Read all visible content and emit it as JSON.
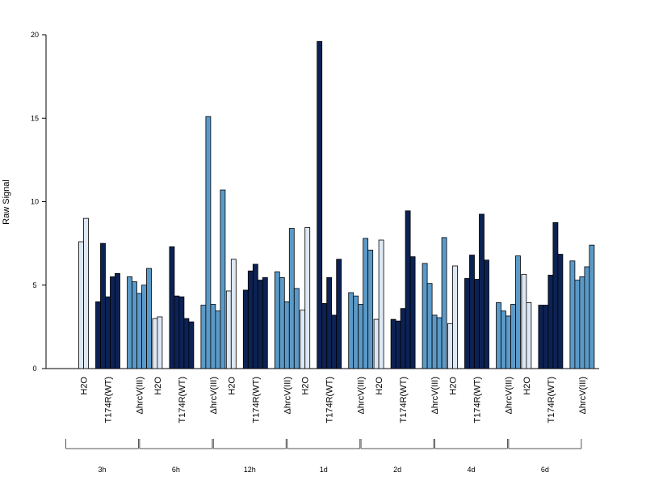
{
  "chart_data": {
    "type": "bar",
    "ylabel": "Raw Signal",
    "ylim": [
      0,
      20
    ],
    "yticks": [
      "0",
      "5",
      "10",
      "15",
      "20"
    ],
    "treatment_labels": [
      "H2O",
      "T174R(WT)",
      "ΔhrcV(III)"
    ],
    "colors": {
      "H2O": "#dde8f4",
      "T174R(WT)": "#0c2254",
      "ΔhrcV(III)": "#5b9ac8",
      "edge": "#000000"
    },
    "groups": [
      {
        "label": "3h",
        "H2O": [
          7.6,
          9.0
        ],
        "T174R(WT)": [
          4.0,
          7.5,
          4.3,
          5.5,
          5.7
        ],
        "ΔhrcV(III)": [
          5.5,
          5.2,
          4.5,
          5.0,
          6.0
        ]
      },
      {
        "label": "6h",
        "H2O": [
          3.0,
          3.1
        ],
        "T174R(WT)": [
          7.3,
          4.35,
          4.3,
          3.0,
          2.8
        ],
        "ΔhrcV(III)": [
          3.8,
          15.1,
          3.85,
          3.45,
          10.7
        ]
      },
      {
        "label": "12h",
        "H2O": [
          4.65,
          6.55
        ],
        "T174R(WT)": [
          4.7,
          5.85,
          6.25,
          5.3,
          5.45
        ],
        "ΔhrcV(III)": [
          5.8,
          5.45,
          4.0,
          8.4,
          4.8
        ]
      },
      {
        "label": "1d",
        "H2O": [
          3.5,
          8.45
        ],
        "T174R(WT)": [
          19.6,
          3.9,
          5.45,
          3.2,
          6.55
        ],
        "ΔhrcV(III)": [
          4.55,
          4.35,
          3.85,
          7.8,
          7.1
        ]
      },
      {
        "label": "2d",
        "H2O": [
          2.95,
          7.7
        ],
        "T174R(WT)": [
          2.95,
          2.85,
          3.6,
          9.45,
          6.7
        ],
        "ΔhrcV(III)": [
          6.3,
          5.1,
          3.2,
          3.05,
          7.85
        ]
      },
      {
        "label": "4d",
        "H2O": [
          2.7,
          6.15
        ],
        "T174R(WT)": [
          5.4,
          6.8,
          5.35,
          9.25,
          6.5
        ],
        "ΔhrcV(III)": [
          3.95,
          3.45,
          3.15,
          3.85,
          6.75
        ]
      },
      {
        "label": "6d",
        "H2O": [
          5.65,
          3.95
        ],
        "T174R(WT)": [
          3.8,
          3.8,
          5.6,
          8.75,
          6.85
        ],
        "ΔhrcV(III)": [
          6.45,
          5.3,
          5.5,
          6.1,
          7.4
        ]
      }
    ]
  }
}
